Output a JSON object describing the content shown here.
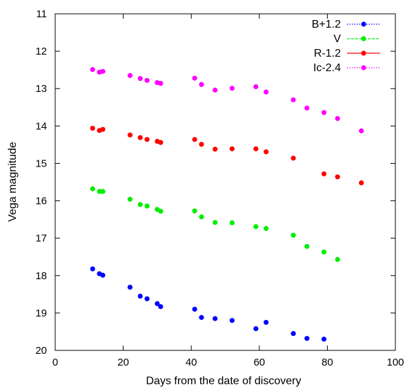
{
  "chart_data": {
    "type": "scatter",
    "xlabel": "Days from the date of discovery",
    "ylabel": "Vega magnitude",
    "xlim": [
      0,
      100
    ],
    "ylim": [
      20,
      11
    ],
    "y_inverted": true,
    "x_ticks": [
      0,
      20,
      40,
      60,
      80,
      100
    ],
    "y_ticks": [
      11,
      12,
      13,
      14,
      15,
      16,
      17,
      18,
      19,
      20
    ],
    "grid": false,
    "legend_position": "top-right",
    "series": [
      {
        "name": "B+1.2",
        "color": "#0000ff",
        "legend_line": "dotted",
        "x": [
          11,
          13,
          14,
          22,
          25,
          27,
          30,
          31,
          41,
          43,
          47,
          52,
          59,
          62,
          70,
          74,
          79
        ],
        "y": [
          17.82,
          17.95,
          17.99,
          18.31,
          18.55,
          18.62,
          18.75,
          18.83,
          18.9,
          19.12,
          19.15,
          19.2,
          19.42,
          19.25,
          19.55,
          19.68,
          19.7
        ]
      },
      {
        "name": "V",
        "color": "#00ee00",
        "legend_line": "dashed",
        "x": [
          11,
          13,
          14,
          22,
          25,
          27,
          30,
          31,
          41,
          43,
          47,
          52,
          59,
          62,
          70,
          74,
          79,
          83
        ],
        "y": [
          15.68,
          15.75,
          15.75,
          15.96,
          16.1,
          16.14,
          16.23,
          16.28,
          16.27,
          16.43,
          16.58,
          16.59,
          16.69,
          16.74,
          16.92,
          17.22,
          17.37,
          17.57
        ]
      },
      {
        "name": "R-1.2",
        "color": "#ff0000",
        "legend_line": "solid",
        "x": [
          11,
          13,
          14,
          22,
          25,
          27,
          30,
          31,
          41,
          43,
          47,
          52,
          59,
          62,
          70,
          79,
          83,
          90
        ],
        "y": [
          14.06,
          14.12,
          14.09,
          14.24,
          14.31,
          14.36,
          14.41,
          14.44,
          14.36,
          14.49,
          14.62,
          14.61,
          14.61,
          14.69,
          14.86,
          15.28,
          15.36,
          15.52
        ]
      },
      {
        "name": "Ic-2.4",
        "color": "#ff00ff",
        "legend_line": "dotted",
        "x": [
          11,
          13,
          14,
          22,
          25,
          27,
          30,
          31,
          41,
          43,
          47,
          52,
          59,
          62,
          70,
          74,
          79,
          83,
          90
        ],
        "y": [
          12.49,
          12.56,
          12.54,
          12.65,
          12.73,
          12.78,
          12.84,
          12.86,
          12.72,
          12.89,
          13.04,
          12.99,
          12.95,
          13.09,
          13.3,
          13.52,
          13.64,
          13.8,
          14.13
        ]
      }
    ]
  }
}
